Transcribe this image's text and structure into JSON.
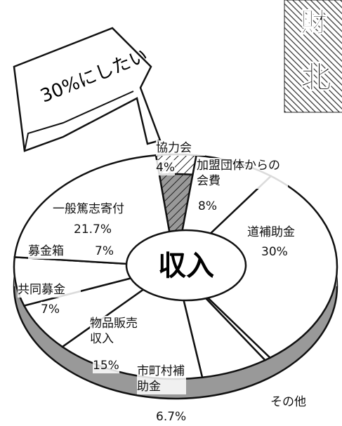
{
  "chart_data": {
    "type": "pie",
    "categories": [
      "協力会",
      "加盟団体からの会費",
      "道補助金",
      "その他",
      "市町村補助金",
      "物品販売収入",
      "共同募金",
      "募金箱",
      "一般篤志寄付"
    ],
    "values": [
      4,
      8,
      30,
      0.6,
      6.7,
      15,
      7,
      7,
      21.7
    ],
    "value_labels": [
      "4%",
      "8%",
      "30%",
      null,
      "6.7%",
      "15%",
      "7%",
      "7%",
      "21.7%"
    ],
    "color": "#ffffff",
    "center_label": "収入",
    "annotation": "30%にしたい",
    "header_fragments": [
      "財",
      "北"
    ]
  }
}
